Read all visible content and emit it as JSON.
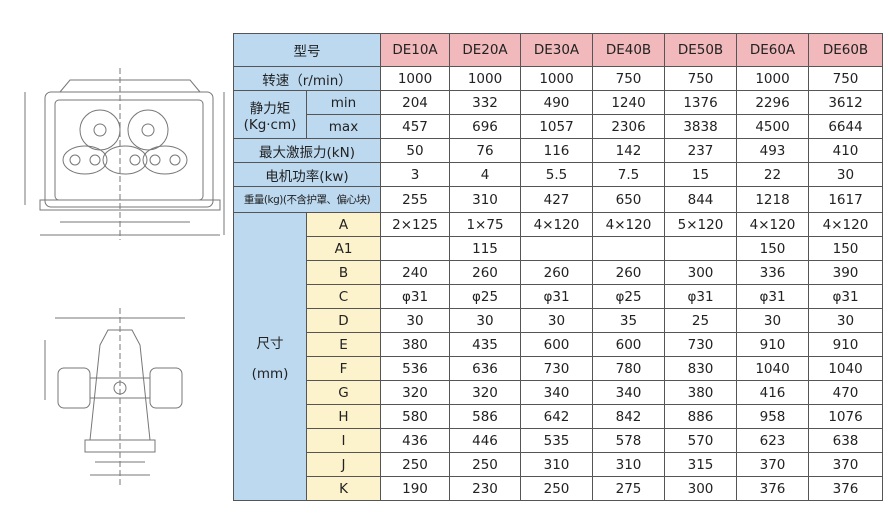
{
  "table": {
    "header_label": "型号",
    "models": [
      "DE10A",
      "DE20A",
      "DE30A",
      "DE40B",
      "DE50B",
      "DE60A",
      "DE60B"
    ],
    "rows": [
      {
        "label": "转速（r/min）",
        "values": [
          1000,
          1000,
          1000,
          750,
          750,
          1000,
          750
        ]
      },
      {
        "label": "静力矩",
        "unit": "(Kg·cm)",
        "sub": "min",
        "values": [
          204,
          332,
          490,
          1240,
          1376,
          2296,
          3612
        ]
      },
      {
        "sub": "max",
        "values": [
          457,
          696,
          1057,
          2306,
          3838,
          4500,
          6644
        ]
      },
      {
        "label": "最大激振力(kN)",
        "values": [
          50,
          76,
          116,
          142,
          237,
          493,
          410
        ]
      },
      {
        "label": "电机功率(kw)",
        "values": [
          3,
          4,
          5.5,
          7.5,
          15,
          22,
          30
        ]
      },
      {
        "label": "重量(kg)(不含护罩、偏心块)",
        "values": [
          255,
          310,
          427,
          650,
          844,
          1218,
          1617
        ]
      }
    ],
    "dimensions": {
      "label": "尺寸",
      "unit": "(mm)",
      "rows": [
        {
          "label": "A",
          "values": [
            "2×125",
            "1×75",
            "4×120",
            "4×120",
            "5×120",
            "4×120",
            "4×120"
          ]
        },
        {
          "label": "A1",
          "values": [
            null,
            115,
            null,
            null,
            null,
            150,
            150
          ]
        },
        {
          "label": "B",
          "values": [
            240,
            260,
            260,
            260,
            300,
            336,
            390
          ]
        },
        {
          "label": "C",
          "values": [
            "φ31",
            "φ25",
            "φ31",
            "φ25",
            "φ31",
            "φ31",
            "φ31"
          ]
        },
        {
          "label": "D",
          "values": [
            30,
            30,
            30,
            35,
            25,
            30,
            30
          ]
        },
        {
          "label": "E",
          "values": [
            380,
            435,
            600,
            600,
            730,
            910,
            910
          ]
        },
        {
          "label": "F",
          "values": [
            536,
            636,
            730,
            780,
            830,
            1040,
            1040
          ]
        },
        {
          "label": "G",
          "values": [
            320,
            320,
            340,
            340,
            380,
            416,
            470
          ]
        },
        {
          "label": "H",
          "values": [
            580,
            586,
            642,
            842,
            886,
            958,
            1076
          ]
        },
        {
          "label": "I",
          "values": [
            436,
            446,
            535,
            578,
            570,
            623,
            638
          ]
        },
        {
          "label": "J",
          "values": [
            250,
            250,
            310,
            310,
            315,
            370,
            370
          ]
        },
        {
          "label": "K",
          "values": [
            190,
            230,
            250,
            275,
            300,
            376,
            376
          ]
        }
      ]
    }
  }
}
